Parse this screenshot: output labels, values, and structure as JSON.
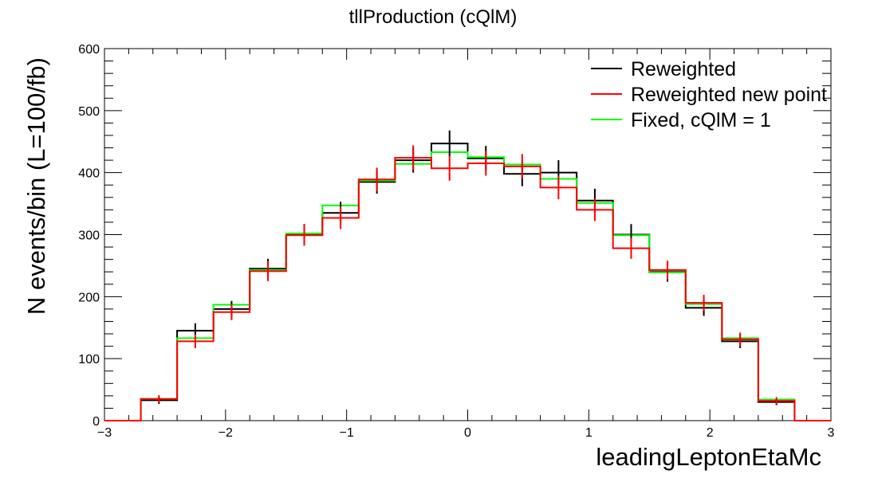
{
  "chart_data": {
    "type": "histogram",
    "title": "tllProduction (cQlM)",
    "xlabel": "leadingLeptonEtaMc",
    "ylabel": "N events/bin (L=100/fb)",
    "xlim": [
      -3,
      3
    ],
    "ylim": [
      0,
      600
    ],
    "x_ticks": [
      -3,
      -2,
      -1,
      0,
      1,
      2,
      3
    ],
    "x_tick_labels": [
      "−3",
      "−2",
      "−1",
      "0",
      "1",
      "2",
      "3"
    ],
    "y_ticks": [
      0,
      100,
      200,
      300,
      400,
      500,
      600
    ],
    "y_tick_labels": [
      "0",
      "100",
      "200",
      "300",
      "400",
      "500",
      "600"
    ],
    "bin_edges": [
      -3.0,
      -2.7,
      -2.4,
      -2.1,
      -1.8,
      -1.5,
      -1.2,
      -0.9,
      -0.6,
      -0.3,
      0.0,
      0.3,
      0.6,
      0.9,
      1.2,
      1.5,
      1.8,
      2.1,
      2.4,
      2.7,
      3.0
    ],
    "series": [
      {
        "name": "Reweighted",
        "color": "#000000",
        "values": [
          0,
          33,
          145,
          180,
          245,
          300,
          335,
          385,
          420,
          447,
          423,
          398,
          400,
          355,
          300,
          240,
          182,
          128,
          30,
          0
        ],
        "errors": [
          0,
          6,
          12,
          13,
          16,
          17,
          18,
          19,
          20,
          21,
          20,
          20,
          20,
          19,
          17,
          16,
          13,
          11,
          5,
          0
        ],
        "error_bars": true
      },
      {
        "name": "Reweighted new point",
        "color": "#ff0000",
        "values": [
          0,
          35,
          128,
          175,
          241,
          299,
          327,
          389,
          424,
          407,
          415,
          410,
          376,
          340,
          278,
          243,
          190,
          131,
          32,
          0
        ],
        "errors": [
          0,
          6,
          11,
          13,
          16,
          17,
          18,
          19,
          20,
          20,
          20,
          20,
          19,
          18,
          17,
          15,
          13,
          11,
          6,
          0
        ],
        "error_bars": true
      },
      {
        "name": "Fixed, cQlM = 1",
        "color": "#00ff00",
        "values": [
          0,
          35,
          133,
          187,
          243,
          302,
          347,
          387,
          414,
          433,
          425,
          413,
          390,
          351,
          299,
          239,
          188,
          133,
          34,
          0
        ],
        "error_bars": false
      }
    ],
    "legend_position": "top-right",
    "grid": false
  }
}
